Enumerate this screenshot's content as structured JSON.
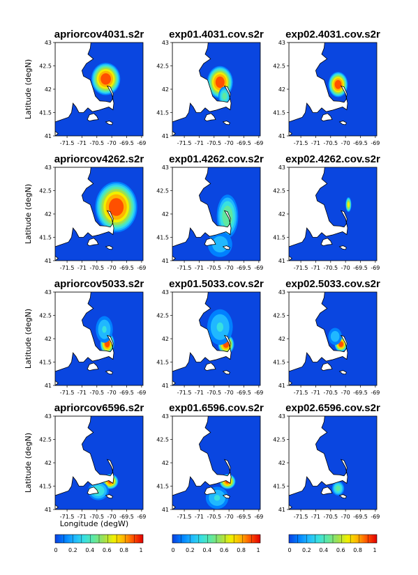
{
  "figure": {
    "ylabel": "Latitude (degN)",
    "xlabel": "Longitude (degW)"
  },
  "chart_data": {
    "type": "heatmap",
    "colormap": [
      "#0a40e0",
      "#0080ff",
      "#20b8ff",
      "#38e0e0",
      "#60e8a0",
      "#a0e050",
      "#f0f000",
      "#ffb400",
      "#ff5000",
      "#e00000"
    ],
    "land_color": "#ffffff",
    "ocean_color": "#0a46e0",
    "xlim": [
      -71.9,
      -68.95
    ],
    "ylim": [
      41.0,
      43.0
    ],
    "x_ticks": [
      "-71.5",
      "-71",
      "-70.5",
      "-70",
      "-69.5",
      "-69"
    ],
    "x_tick_values": [
      -71.5,
      -71,
      -70.5,
      -70,
      -69.5,
      -69
    ],
    "y_ticks": [
      "41",
      "41.5",
      "42",
      "42.5",
      "43"
    ],
    "y_tick_values": [
      41,
      41.5,
      42,
      42.5,
      43
    ],
    "colorbar_ticks": [
      "0",
      "0.2",
      "0.4",
      "0.6",
      "0.8",
      "1"
    ],
    "colorbar_range": [
      0,
      1
    ],
    "panels": [
      {
        "title": "apriorcov4031.s2r",
        "blobs": [
          {
            "lon": -70.2,
            "lat": 42.22,
            "sx": 0.45,
            "sy": 0.32,
            "amp": 1.0
          }
        ]
      },
      {
        "title": "exp01.4031.cov.s2r",
        "blobs": [
          {
            "lon": -70.3,
            "lat": 42.15,
            "sx": 0.4,
            "sy": 0.32,
            "amp": 1.0
          },
          {
            "lon": -70.15,
            "lat": 41.85,
            "sx": 0.2,
            "sy": 0.2,
            "amp": 0.5
          }
        ]
      },
      {
        "title": "exp02.4031.cov.s2r",
        "blobs": [
          {
            "lon": -70.25,
            "lat": 42.1,
            "sx": 0.3,
            "sy": 0.25,
            "amp": 1.0
          }
        ]
      },
      {
        "title": "apriorcov4262.s2r",
        "blobs": [
          {
            "lon": -69.85,
            "lat": 42.15,
            "sx": 0.65,
            "sy": 0.5,
            "amp": 1.0
          }
        ]
      },
      {
        "title": "exp01.4262.cov.s2r",
        "blobs": [
          {
            "lon": -70.05,
            "lat": 41.95,
            "sx": 0.35,
            "sy": 0.45,
            "amp": 0.55
          },
          {
            "lon": -70.3,
            "lat": 41.35,
            "sx": 0.45,
            "sy": 0.3,
            "amp": 0.3
          }
        ]
      },
      {
        "title": "exp02.4262.cov.s2r",
        "blobs": [
          {
            "lon": -69.9,
            "lat": 42.2,
            "sx": 0.09,
            "sy": 0.15,
            "amp": 0.75
          }
        ]
      },
      {
        "title": "apriorcov5033.s2r",
        "blobs": [
          {
            "lon": -70.15,
            "lat": 41.9,
            "sx": 0.22,
            "sy": 0.22,
            "amp": 1.0
          },
          {
            "lon": -70.25,
            "lat": 42.2,
            "sx": 0.3,
            "sy": 0.3,
            "amp": 0.35
          }
        ]
      },
      {
        "title": "exp01.5033.cov.s2r",
        "blobs": [
          {
            "lon": -70.1,
            "lat": 41.88,
            "sx": 0.25,
            "sy": 0.2,
            "amp": 1.0
          },
          {
            "lon": -70.3,
            "lat": 42.25,
            "sx": 0.45,
            "sy": 0.4,
            "amp": 0.35
          }
        ]
      },
      {
        "title": "exp02.5033.cov.s2r",
        "blobs": [
          {
            "lon": -70.15,
            "lat": 41.88,
            "sx": 0.2,
            "sy": 0.15,
            "amp": 1.0
          },
          {
            "lon": -70.35,
            "lat": 42.05,
            "sx": 0.25,
            "sy": 0.2,
            "amp": 0.3
          }
        ]
      },
      {
        "title": "apriorcov6596.s2r",
        "blobs": [
          {
            "lon": -70.05,
            "lat": 41.6,
            "sx": 0.25,
            "sy": 0.15,
            "amp": 0.95
          },
          {
            "lon": -70.45,
            "lat": 41.4,
            "sx": 0.35,
            "sy": 0.2,
            "amp": 0.45
          }
        ]
      },
      {
        "title": "exp01.6596.cov.s2r",
        "blobs": [
          {
            "lon": -70.05,
            "lat": 41.6,
            "sx": 0.25,
            "sy": 0.15,
            "amp": 0.95
          },
          {
            "lon": -70.4,
            "lat": 41.25,
            "sx": 0.4,
            "sy": 0.25,
            "amp": 0.35
          }
        ]
      },
      {
        "title": "exp02.6596.cov.s2r",
        "blobs": [
          {
            "lon": -70.25,
            "lat": 41.45,
            "sx": 0.2,
            "sy": 0.15,
            "amp": 0.5
          }
        ]
      }
    ]
  }
}
